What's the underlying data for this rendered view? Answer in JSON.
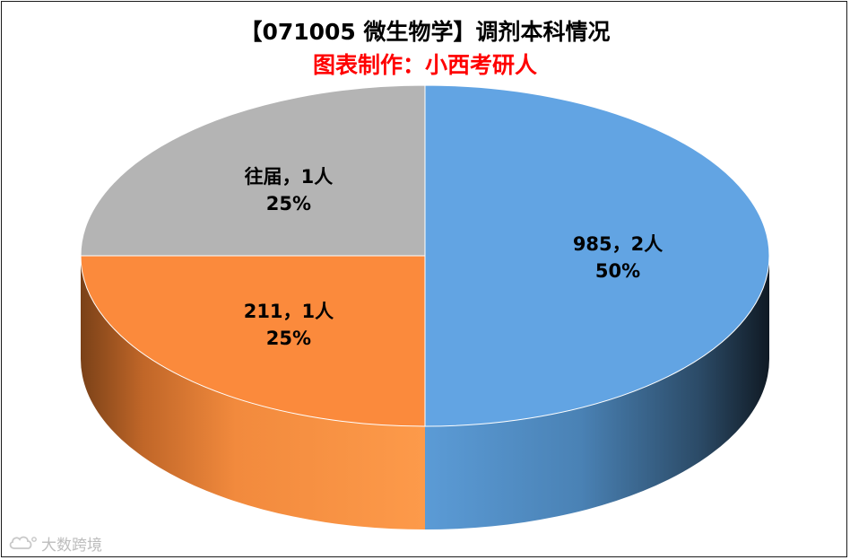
{
  "chart_data": {
    "type": "pie",
    "title": "【071005 微生物学】调剂本科情况",
    "subtitle": "图表制作：小西考研人",
    "subtitle_color": "#ff0000",
    "slices": [
      {
        "label": "985，2人",
        "value": 2,
        "percent": "50%",
        "color": "#62a4e3"
      },
      {
        "label": "211，1人",
        "value": 1,
        "percent": "25%",
        "color": "#fb8a3c"
      },
      {
        "label": "往届，1人",
        "value": 1,
        "percent": "25%",
        "color": "#b4b4b4"
      }
    ],
    "style": "3d"
  },
  "watermark": {
    "text": "大数跨境",
    "icon": "cloud-logo-icon"
  }
}
